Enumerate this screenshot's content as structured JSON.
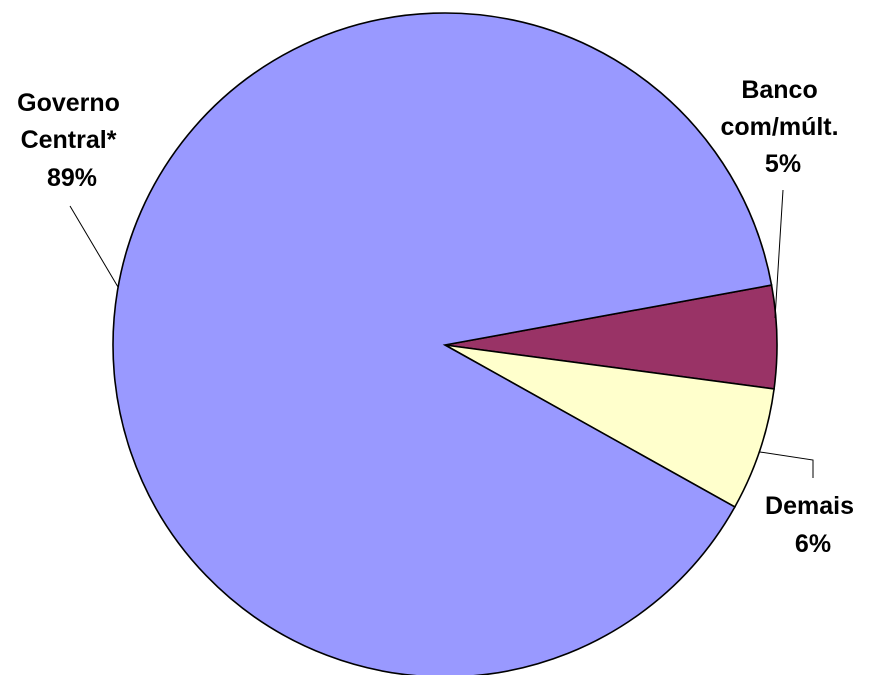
{
  "chart_data": {
    "type": "pie",
    "slices": [
      {
        "lines": [
          "Banco",
          "com/múlt."
        ],
        "pct_label": "5%",
        "value": 5,
        "color": "#993366"
      },
      {
        "lines": [
          "Demais"
        ],
        "pct_label": "6%",
        "value": 6,
        "color": "#ffffcc"
      },
      {
        "lines": [
          "Governo",
          "Central*"
        ],
        "pct_label": "89%",
        "value": 89,
        "color": "#9999ff"
      }
    ]
  }
}
